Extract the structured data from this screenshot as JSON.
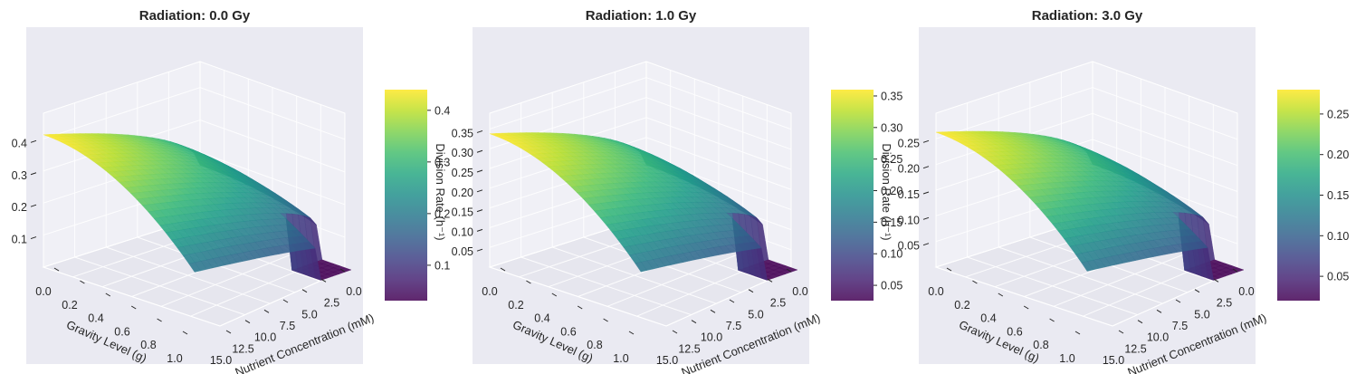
{
  "chart_data": [
    {
      "type": "surface",
      "title": "Radiation: 0.0 Gy",
      "xlabel": "Gravity Level (g)",
      "ylabel": "Nutrient Concentration (mM)",
      "zlabel": "Division Rate (h⁻¹)",
      "colormap": "viridis",
      "x_ticks": [
        "0.0",
        "0.2",
        "0.4",
        "0.6",
        "0.8",
        "1.0"
      ],
      "y_ticks": [
        "0.0",
        "2.5",
        "5.0",
        "7.5",
        "10.0",
        "12.5",
        "15.0"
      ],
      "z_ticks": [
        "0.1",
        "0.2",
        "0.3",
        "0.4"
      ],
      "colorbar_ticks": [
        "0.1",
        "0.2",
        "0.3",
        "0.4"
      ],
      "xlim": [
        0,
        1
      ],
      "ylim": [
        0,
        15
      ],
      "zlim": [
        0,
        0.48
      ],
      "peak": 0.44,
      "min": 0.0,
      "corners": {
        "g0_n0": 0.17,
        "g1_n0": 0.0,
        "g0_n15": 0.44,
        "g1_n15": 0.17
      }
    },
    {
      "type": "surface",
      "title": "Radiation: 1.0 Gy",
      "xlabel": "Gravity Level (g)",
      "ylabel": "Nutrient Concentration (mM)",
      "zlabel": "Division Rate (h⁻¹)",
      "colormap": "viridis",
      "x_ticks": [
        "0.0",
        "0.2",
        "0.4",
        "0.6",
        "0.8",
        "1.0"
      ],
      "y_ticks": [
        "0.0",
        "2.5",
        "5.0",
        "7.5",
        "10.0",
        "12.5",
        "15.0"
      ],
      "z_ticks": [
        "0.05",
        "0.10",
        "0.15",
        "0.20",
        "0.25",
        "0.30",
        "0.35"
      ],
      "colorbar_ticks": [
        "0.05",
        "0.10",
        "0.15",
        "0.20",
        "0.25",
        "0.30",
        "0.35"
      ],
      "xlim": [
        0,
        1
      ],
      "ylim": [
        0,
        15
      ],
      "zlim": [
        0,
        0.39
      ],
      "peak": 0.36,
      "min": 0.0,
      "corners": {
        "g0_n0": 0.14,
        "g1_n0": 0.0,
        "g0_n15": 0.36,
        "g1_n15": 0.14
      }
    },
    {
      "type": "surface",
      "title": "Radiation: 3.0 Gy",
      "xlabel": "Gravity Level (g)",
      "ylabel": "Nutrient Concentration (mM)",
      "zlabel": "",
      "colormap": "viridis",
      "x_ticks": [
        "0.0",
        "0.2",
        "0.4",
        "0.6",
        "0.8",
        "1.0"
      ],
      "y_ticks": [
        "0.0",
        "2.5",
        "5.0",
        "7.5",
        "10.0",
        "12.5",
        "15.0"
      ],
      "z_ticks": [
        "0.05",
        "0.10",
        "0.15",
        "0.20",
        "0.25"
      ],
      "colorbar_ticks": [
        "0.05",
        "0.10",
        "0.15",
        "0.20",
        "0.25"
      ],
      "xlim": [
        0,
        1
      ],
      "ylim": [
        0,
        15
      ],
      "zlim": [
        0,
        0.3
      ],
      "peak": 0.28,
      "min": 0.0,
      "corners": {
        "g0_n0": 0.11,
        "g1_n0": 0.0,
        "g0_n15": 0.28,
        "g1_n15": 0.11
      }
    }
  ]
}
